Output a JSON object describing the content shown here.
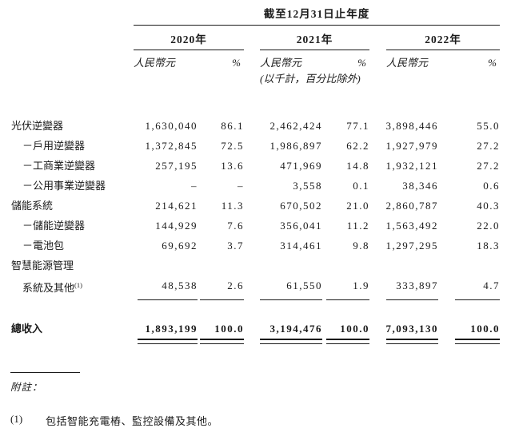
{
  "colors": {
    "background": "#ffffff",
    "text": "#1a1a1a",
    "rule": "#1a1a1a"
  },
  "table": {
    "period_header": "截至12月31日止年度",
    "unit_note": "(以千計，百分比除外)",
    "col_groups": [
      {
        "year": "2020年",
        "currency_label": "人民幣元",
        "pct_label": "%"
      },
      {
        "year": "2021年",
        "currency_label": "人民幣元",
        "pct_label": "%"
      },
      {
        "year": "2022年",
        "currency_label": "人民幣元",
        "pct_label": "%"
      }
    ],
    "rows": [
      {
        "label": "光伏逆變器",
        "values": [
          "1,630,040",
          "86.1",
          "2,462,424",
          "77.1",
          "3,898,446",
          "55.0"
        ]
      },
      {
        "label": "－戶用逆變器",
        "values": [
          "1,372,845",
          "72.5",
          "1,986,897",
          "62.2",
          "1,927,979",
          "27.2"
        ]
      },
      {
        "label": "－工商業逆變器",
        "values": [
          "257,195",
          "13.6",
          "471,969",
          "14.8",
          "1,932,121",
          "27.2"
        ]
      },
      {
        "label": "－公用事業逆變器",
        "values": [
          "–",
          "–",
          "3,558",
          "0.1",
          "38,346",
          "0.6"
        ]
      },
      {
        "label": "儲能系統",
        "values": [
          "214,621",
          "11.3",
          "670,502",
          "21.0",
          "2,860,787",
          "40.3"
        ]
      },
      {
        "label": "－儲能逆變器",
        "values": [
          "144,929",
          "7.6",
          "356,041",
          "11.2",
          "1,563,492",
          "22.0"
        ]
      },
      {
        "label": "－電池包",
        "values": [
          "69,692",
          "3.7",
          "314,461",
          "9.8",
          "1,297,295",
          "18.3"
        ]
      },
      {
        "label": "智慧能源管理",
        "values": [
          "",
          "",
          "",
          "",
          "",
          ""
        ]
      },
      {
        "label": "系統及其他",
        "sup": "(1)",
        "values": [
          "48,538",
          "2.6",
          "61,550",
          "1.9",
          "333,897",
          "4.7"
        ]
      }
    ],
    "total": {
      "label": "總收入",
      "values": [
        "1,893,199",
        "100.0",
        "3,194,476",
        "100.0",
        "7,093,130",
        "100.0"
      ]
    }
  },
  "footnotes": {
    "title": "附註：",
    "items": [
      {
        "marker": "(1)",
        "text": "包括智能充電樁、監控設備及其他。"
      }
    ]
  }
}
